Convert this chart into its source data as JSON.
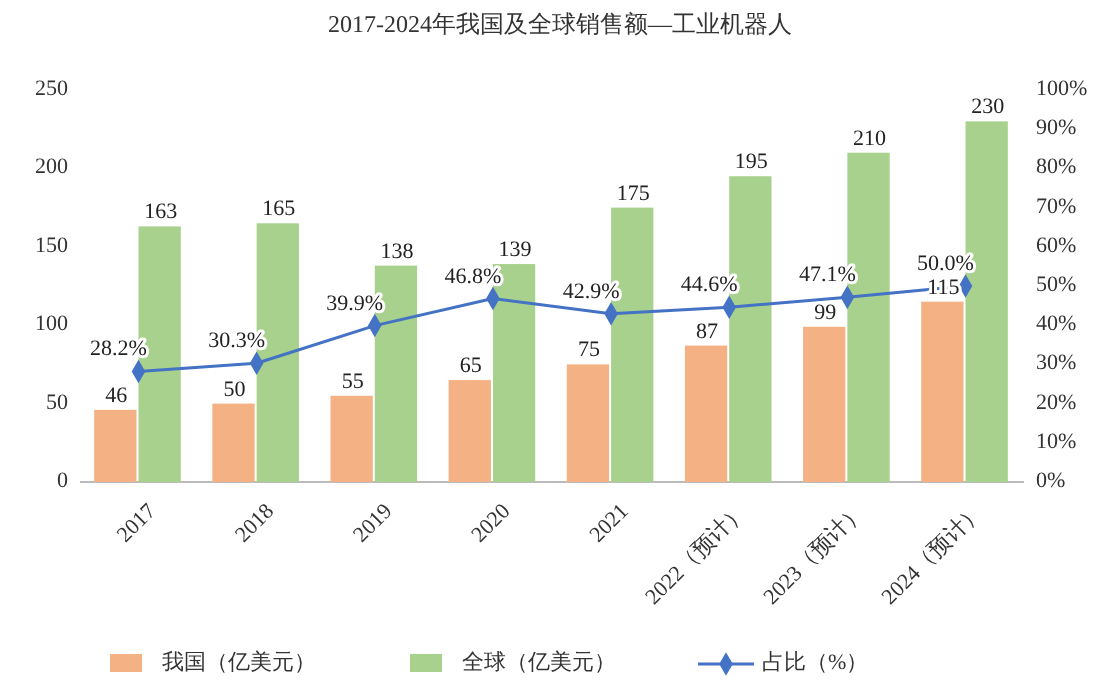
{
  "chart_data": {
    "type": "bar",
    "title": "2017-2024年我国及全球销售额—工业机器人",
    "categories": [
      "2017",
      "2018",
      "2019",
      "2020",
      "2021",
      "2022（预计）",
      "2023（预计）",
      "2024（预计）"
    ],
    "series": [
      {
        "name": "我国（亿美元）",
        "color": "#f4b183",
        "values": [
          46,
          50,
          55,
          65,
          75,
          87,
          99,
          115
        ],
        "value_labels": [
          "46",
          "50",
          "55",
          "65",
          "75",
          "87",
          "99",
          "115"
        ]
      },
      {
        "name": "全球（亿美元）",
        "color": "#a9d18e",
        "values": [
          163,
          165,
          138,
          139,
          175,
          195,
          210,
          230
        ],
        "value_labels": [
          "163",
          "165",
          "138",
          "139",
          "175",
          "195",
          "210",
          "230"
        ]
      },
      {
        "type": "line",
        "name": "占比（%）",
        "color": "#4472c4",
        "axis": "y2",
        "marker": "diamond",
        "values": [
          28.2,
          30.3,
          39.9,
          46.8,
          42.9,
          44.6,
          47.1,
          50.0
        ],
        "value_labels": [
          "28.2%",
          "30.3%",
          "39.9%",
          "46.8%",
          "42.9%",
          "44.6%",
          "47.1%",
          "50.0%"
        ]
      }
    ],
    "ylim": [
      0,
      250
    ],
    "yticks": [
      0,
      50,
      100,
      150,
      200,
      250
    ],
    "y2lim": [
      0,
      100
    ],
    "y2ticks": [
      {
        "value": 0,
        "label": "0%"
      },
      {
        "value": 10,
        "label": "10%"
      },
      {
        "value": 20,
        "label": "20%"
      },
      {
        "value": 30,
        "label": "30%"
      },
      {
        "value": 40,
        "label": "40%"
      },
      {
        "value": 50,
        "label": "50%"
      },
      {
        "value": 60,
        "label": "60%"
      },
      {
        "value": 70,
        "label": "70%"
      },
      {
        "value": 80,
        "label": "80%"
      },
      {
        "value": 90,
        "label": "90%"
      },
      {
        "value": 100,
        "label": "100%"
      }
    ],
    "legend": "bottom"
  }
}
